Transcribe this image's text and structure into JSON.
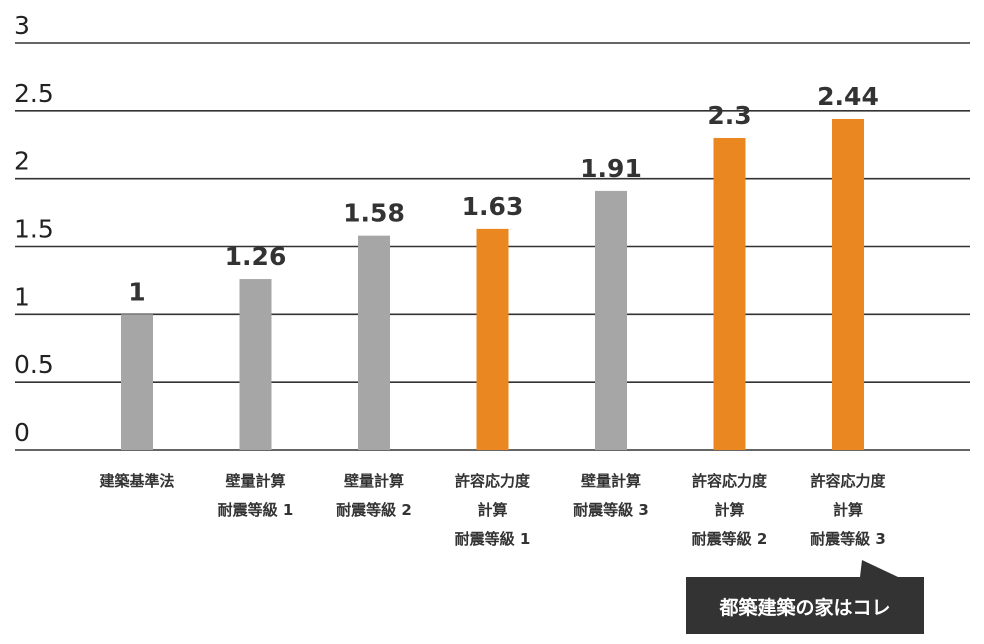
{
  "chart_data": {
    "type": "bar",
    "title": "",
    "xlabel": "",
    "ylabel": "",
    "ylim": [
      0,
      3
    ],
    "yticks": [
      "0",
      "0.5",
      "1",
      "1.5",
      "2",
      "2.5",
      "3"
    ],
    "grid": true,
    "categories": [
      [
        "建築基準法"
      ],
      [
        "壁量計算",
        "耐震等級 1"
      ],
      [
        "壁量計算",
        "耐震等級 2"
      ],
      [
        "許容応力度",
        "計算",
        "耐震等級 1"
      ],
      [
        "壁量計算",
        "耐震等級 3"
      ],
      [
        "許容応力度",
        "計算",
        "耐震等級 2"
      ],
      [
        "許容応力度",
        "計算",
        "耐震等級 3"
      ]
    ],
    "values": [
      1,
      1.26,
      1.58,
      1.63,
      1.91,
      2.3,
      2.44
    ],
    "value_labels": [
      "1",
      "1.26",
      "1.58",
      "1.63",
      "1.91",
      "2.3",
      "2.44"
    ],
    "bar_colors": [
      "#a6a6a6",
      "#a6a6a6",
      "#a6a6a6",
      "#ea8720",
      "#a6a6a6",
      "#ea8720",
      "#ea8720"
    ],
    "gridline_color": "#333333"
  },
  "callout": {
    "text": "都築建築の家はコレ",
    "background": "#333333"
  }
}
